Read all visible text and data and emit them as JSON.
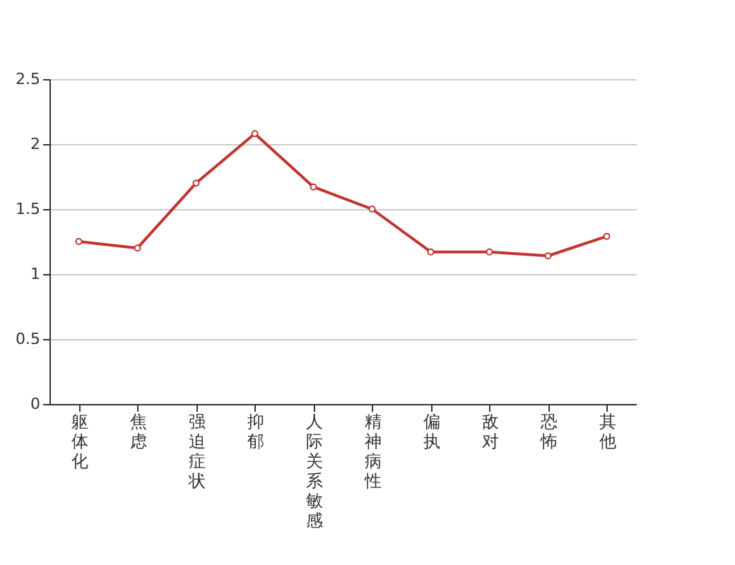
{
  "chart_data": {
    "type": "line",
    "categories": [
      "躯体化",
      "焦虑",
      "强迫症状",
      "抑郁",
      "人际关系敏感",
      "精神病性",
      "偏执",
      "敌对",
      "恐怖",
      "其他"
    ],
    "series": [
      {
        "color": "#c23531",
        "values": [
          1.25,
          1.2,
          1.7,
          2.08,
          1.67,
          1.5,
          1.17,
          1.17,
          1.14,
          1.29
        ]
      }
    ],
    "ylim": [
      0,
      2.5
    ],
    "yticks": [
      0,
      0.5,
      1,
      1.5,
      2,
      2.5
    ],
    "grid": "y",
    "marker": "circle",
    "line_style": "solid"
  }
}
